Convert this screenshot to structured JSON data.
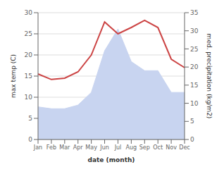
{
  "chart_data": {
    "type": "line",
    "xlabel": "date (month)",
    "ylabel": "max temp (C)",
    "y2label": "med. precipitation (kg/m2)",
    "categories": [
      "Jan",
      "Feb",
      "Mar",
      "Apr",
      "May",
      "Jun",
      "Jul",
      "Aug",
      "Sep",
      "Oct",
      "Nov",
      "Dec"
    ],
    "series": [
      {
        "type": "area",
        "axis": "y2",
        "color": "#c8d4f0",
        "values": [
          9.0,
          8.5,
          8.5,
          9.5,
          13.0,
          24.5,
          30.5,
          21.5,
          19.0,
          19.0,
          13.0,
          13.0
        ]
      },
      {
        "type": "line",
        "color": "#cc4444",
        "values": [
          15.5,
          14.2,
          14.5,
          16.0,
          20.0,
          27.8,
          25.0,
          26.5,
          28.2,
          26.5,
          19.0,
          17.0
        ]
      }
    ],
    "ylim": [
      0,
      30
    ],
    "yticks": [
      0,
      5,
      10,
      15,
      20,
      25,
      30
    ],
    "y2lim": [
      0,
      35
    ],
    "y2ticks": [
      0,
      5,
      10,
      15,
      20,
      25,
      30,
      35
    ],
    "grid": true
  }
}
